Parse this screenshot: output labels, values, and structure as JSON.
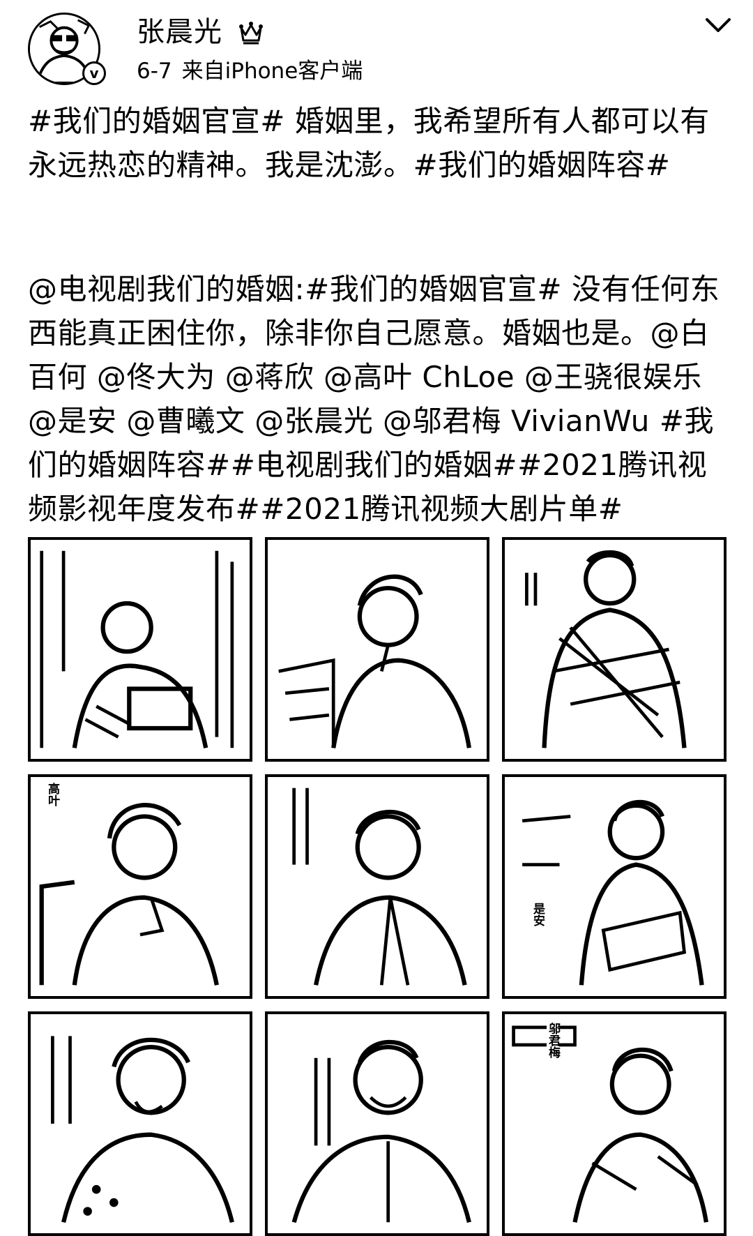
{
  "post": {
    "author": {
      "name": "张晨光"
    },
    "date": "6-7",
    "source": "来自iPhone客户端",
    "text": "#我们的婚姻官宣# 婚姻里，我希望所有人都可以有永远热恋的精神。我是沈澎。#我们的婚姻阵容#",
    "repost_text": "@电视剧我们的婚姻:#我们的婚姻官宣# 没有任何东西能真正困住你，除非你自己愿意。婚姻也是。@白百何 @佟大为 @蒋欣 @高叶 ChLoe @王骁很娱乐 @是安 @曹曦文 @张晨光 @邬君梅 VivianWu #我们的婚姻阵容##电视剧我们的婚姻##2021腾讯视频影视年度发布##2021腾讯视频大剧片单#"
  },
  "photos": [
    {
      "caption": ""
    },
    {
      "caption": ""
    },
    {
      "caption": ""
    },
    {
      "caption": "高叶"
    },
    {
      "caption": ""
    },
    {
      "caption": "是安"
    },
    {
      "caption": ""
    },
    {
      "caption": ""
    },
    {
      "caption": "邬君梅"
    }
  ],
  "icons": {
    "verified": "verified-badge-icon",
    "member": "member-crown-icon",
    "menu": "chevron-down-icon"
  }
}
